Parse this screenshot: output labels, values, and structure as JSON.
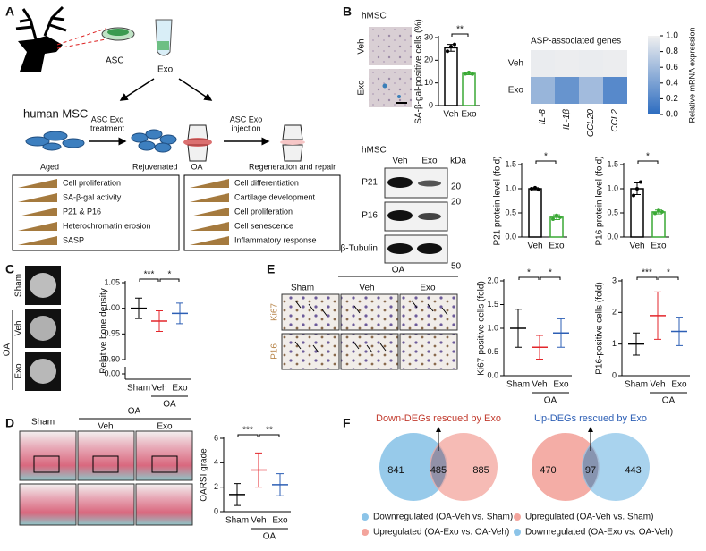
{
  "panel_labels": [
    "A",
    "B",
    "C",
    "D",
    "E",
    "F"
  ],
  "panel_a": {
    "source": "ASC",
    "vesicle": "Exo",
    "cell_title": "human MSC",
    "treatment": [
      "ASC Exo",
      "treatment"
    ],
    "before": "Aged",
    "after": "Rejuvenated",
    "disease": "OA",
    "injection": [
      "ASC Exo",
      "injection"
    ],
    "outcome": "Regeneration and repair",
    "msc_effects": [
      "Cell proliferation",
      "SA-β-gal activity",
      "P21 & P16",
      "Heterochromatin erosion",
      "SASP"
    ],
    "oa_effects": [
      "Cell differentiation",
      "Cartilage development",
      "Cell proliferation",
      "Cell senescence",
      "Inflammatory response"
    ]
  },
  "panel_b": {
    "cell_line": "hMSC",
    "image_rows": [
      "Veh",
      "Exo"
    ],
    "blot": {
      "lanes": [
        "Veh",
        "Exo"
      ],
      "unit": "kDa",
      "proteins": [
        "P21",
        "P16",
        "β-Tubulin"
      ],
      "markers": [
        20,
        20,
        50
      ]
    }
  },
  "panel_c": {
    "control": "Sham",
    "group": "OA",
    "rows": [
      "Veh",
      "Exo"
    ]
  },
  "panel_d": {
    "columns": [
      "Sham",
      "Veh",
      "Exo"
    ],
    "group": "OA"
  },
  "panel_e": {
    "columns": [
      "Sham",
      "Veh",
      "Exo"
    ],
    "group": "OA",
    "stains": [
      "Ki67",
      "P16"
    ]
  },
  "chart_data": [
    {
      "type": "bar",
      "ylabel": "SA-β-gal-positive cells (%)",
      "categories": [
        "Veh",
        "Exo"
      ],
      "values": [
        25.5,
        14.2
      ],
      "errors": [
        1.5,
        0.6
      ],
      "points": [
        [
          24,
          26,
          27
        ],
        [
          14,
          14.6,
          13.9
        ]
      ],
      "colors": [
        "#000000",
        "#3aa935"
      ],
      "ylim": [
        0,
        30
      ],
      "yticks": [
        0,
        10,
        20,
        30
      ],
      "significance": [
        "**"
      ]
    },
    {
      "type": "heatmap",
      "title": "ASP-associated genes",
      "rows": [
        "Veh",
        "Exo"
      ],
      "columns": [
        "IL-8",
        "IL-1β",
        "CCL20",
        "CCL2"
      ],
      "values": [
        [
          0.97,
          0.98,
          0.97,
          0.98
        ],
        [
          0.55,
          0.3,
          0.6,
          0.22
        ]
      ],
      "colormap": [
        "#2c6cc0",
        "#f0f0f0"
      ],
      "zlim": [
        0,
        1
      ],
      "zticks": [
        {
          "value": 0,
          "label": "0.0"
        },
        0.2,
        0.4,
        0.6,
        0.8,
        {
          "value": 1,
          "label": "1.0"
        }
      ],
      "colorbar_label": "Relative mRNA expression"
    },
    {
      "type": "bar",
      "ylabel": "P21 protein level (fold)",
      "categories": [
        "Veh",
        "Exo"
      ],
      "values": [
        1.0,
        0.41
      ],
      "errors": [
        0.02,
        0.05
      ],
      "points": [
        [
          1.0,
          1.02,
          0.98
        ],
        [
          0.37,
          0.45,
          0.41
        ]
      ],
      "colors": [
        "#000000",
        "#3aa935"
      ],
      "ylim": [
        0,
        1.5
      ],
      "yticks": [
        {
          "value": 0,
          "label": "0.0"
        },
        0.5,
        {
          "value": 1,
          "label": "1.0"
        },
        1.5
      ],
      "significance": [
        "*"
      ]
    },
    {
      "type": "bar",
      "ylabel": "P16 protein level (fold)",
      "categories": [
        "Veh",
        "Exo"
      ],
      "values": [
        1.0,
        0.52
      ],
      "errors": [
        0.12,
        0.04
      ],
      "points": [
        [
          0.86,
          1.0,
          1.14
        ],
        [
          0.49,
          0.55,
          0.52
        ]
      ],
      "colors": [
        "#000000",
        "#3aa935"
      ],
      "ylim": [
        0,
        1.5
      ],
      "yticks": [
        {
          "value": 0,
          "label": "0.0"
        },
        0.5,
        {
          "value": 1,
          "label": "1.0"
        },
        1.5
      ],
      "significance": [
        "*"
      ]
    },
    {
      "type": "strip",
      "ylabel": "Relative bone density",
      "categories": [
        "Sham",
        "Veh",
        "Exo"
      ],
      "group_label": "OA",
      "values": [
        1.0,
        0.975,
        0.99
      ],
      "errors": [
        0.02,
        0.02,
        0.02
      ],
      "colors": [
        "#000000",
        "#e3262b",
        "#2d5fb5"
      ],
      "ylim": [
        0.9,
        1.05
      ],
      "yticks": [
        {
          "value": 0.9,
          "label": "0.90"
        },
        0.95,
        {
          "value": 1,
          "label": "1.00"
        },
        1.05
      ],
      "ybreak_ticks": [
        {
          "value": 0,
          "label": "0.00"
        }
      ],
      "significance": [
        "***",
        "*"
      ]
    },
    {
      "type": "strip",
      "ylabel": "Ki67-positive cells (fold)",
      "categories": [
        "Sham",
        "Veh",
        "Exo"
      ],
      "group_label": "OA",
      "values": [
        1.0,
        0.6,
        0.9
      ],
      "errors": [
        0.4,
        0.25,
        0.3
      ],
      "colors": [
        "#000000",
        "#e3262b",
        "#2d5fb5"
      ],
      "ylim": [
        0,
        2
      ],
      "yticks": [
        {
          "value": 0,
          "label": "0.0"
        },
        0.5,
        {
          "value": 1,
          "label": "1.0"
        },
        1.5,
        {
          "value": 2,
          "label": "2.0"
        }
      ],
      "significance": [
        "*",
        "*"
      ]
    },
    {
      "type": "strip",
      "ylabel": "P16-positive cells (fold)",
      "categories": [
        "Sham",
        "Veh",
        "Exo"
      ],
      "group_label": "OA",
      "values": [
        1.0,
        1.9,
        1.4
      ],
      "errors": [
        0.35,
        0.75,
        0.45
      ],
      "colors": [
        "#000000",
        "#e3262b",
        "#2d5fb5"
      ],
      "ylim": [
        0,
        3
      ],
      "yticks": [
        0,
        1,
        2,
        3
      ],
      "significance": [
        "***",
        "*"
      ]
    },
    {
      "type": "strip",
      "ylabel": "OARSI grade",
      "categories": [
        "Sham",
        "Veh",
        "Exo"
      ],
      "group_label": "OA",
      "values": [
        1.4,
        3.4,
        2.2
      ],
      "errors": [
        0.9,
        1.4,
        0.9
      ],
      "colors": [
        "#000000",
        "#e3262b",
        "#2d5fb5"
      ],
      "ylim": [
        0,
        6
      ],
      "yticks": [
        0,
        2,
        4,
        6
      ],
      "significance": [
        "***",
        "**"
      ]
    },
    {
      "type": "venn",
      "title": "Down-DEGs rescued by Exo",
      "title_color": "#c23b2e",
      "values": [
        841,
        485,
        885
      ],
      "sets": [
        {
          "name": "Downregulated (OA-Veh vs. Sham)",
          "color": "#8cc4e8"
        },
        {
          "name": "Upregulated (OA-Exo vs. OA-Veh)",
          "color": "#f3a49c"
        }
      ]
    },
    {
      "type": "venn",
      "title": "Up-DEGs rescued by Exo",
      "title_color": "#2d5fb5",
      "values": [
        470,
        97,
        443
      ],
      "sets": [
        {
          "name": "Upregulated (OA-Veh vs. Sham)",
          "color": "#f3a49c"
        },
        {
          "name": "Downregulated (OA-Exo vs. OA-Veh)",
          "color": "#8cc4e8"
        }
      ]
    }
  ]
}
